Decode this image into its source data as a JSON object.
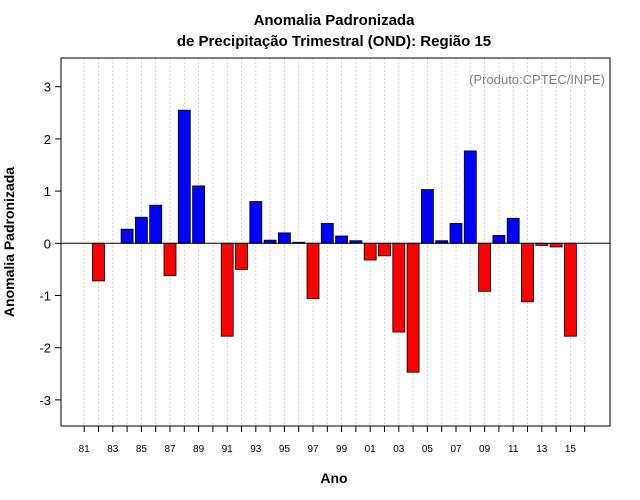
{
  "chart_data": {
    "type": "bar",
    "title": [
      "Anomalia Padronizada",
      "de Precipitação Trimestral (OND): Região 15"
    ],
    "xlabel": "Ano",
    "ylabel": "Anomalia Padronizada",
    "annotation": "(Produto:CPTEC/INPE)",
    "ylim": [
      -3.5,
      3.55
    ],
    "yticks": [
      -3,
      -2,
      -1,
      0,
      1,
      2,
      3
    ],
    "ytick_labels": [
      "-3",
      "-2",
      "-1",
      "0",
      "1",
      "2",
      "3"
    ],
    "xtick_labels": [
      "81",
      "83",
      "85",
      "87",
      "89",
      "91",
      "93",
      "95",
      "97",
      "99",
      "01",
      "03",
      "05",
      "07",
      "09",
      "11",
      "13",
      "15"
    ],
    "years": [
      1981,
      1982,
      1983,
      1984,
      1985,
      1986,
      1987,
      1988,
      1989,
      1990,
      1991,
      1992,
      1993,
      1994,
      1995,
      1996,
      1997,
      1998,
      1999,
      2000,
      2001,
      2002,
      2003,
      2004,
      2005,
      2006,
      2007,
      2008,
      2009,
      2010,
      2011,
      2012,
      2013,
      2014,
      2015,
      2016
    ],
    "values": [
      null,
      -0.72,
      null,
      0.27,
      0.5,
      0.73,
      -0.62,
      2.55,
      1.1,
      null,
      -1.78,
      -0.5,
      0.8,
      0.06,
      0.2,
      0.02,
      -1.06,
      0.38,
      0.14,
      0.05,
      -0.32,
      -0.24,
      -1.7,
      -2.47,
      1.03,
      0.05,
      0.38,
      1.77,
      -0.92,
      0.15,
      0.48,
      -1.12,
      -0.04,
      -0.07,
      -1.78,
      null
    ],
    "colors": {
      "positive": "#0000ff",
      "negative": "#ff0000",
      "zero_line": "#000000",
      "grid": "#c8c8c8"
    },
    "grid": true
  }
}
